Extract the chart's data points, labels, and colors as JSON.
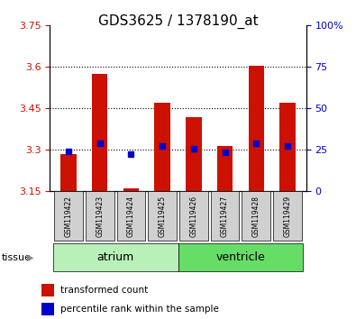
{
  "title": "GDS3625 / 1378190_at",
  "samples": [
    "GSM119422",
    "GSM119423",
    "GSM119424",
    "GSM119425",
    "GSM119426",
    "GSM119427",
    "GSM119428",
    "GSM119429"
  ],
  "bar_bottom": 3.15,
  "bar_tops": [
    3.285,
    3.575,
    3.16,
    3.47,
    3.42,
    3.315,
    3.605,
    3.47
  ],
  "percentile_values": [
    3.295,
    3.325,
    3.285,
    3.315,
    3.305,
    3.29,
    3.325,
    3.315
  ],
  "ylim_left": [
    3.15,
    3.75
  ],
  "ylim_right": [
    0,
    100
  ],
  "yticks_left": [
    3.15,
    3.3,
    3.45,
    3.6,
    3.75
  ],
  "ytick_labels_left": [
    "3.15",
    "3.3",
    "3.45",
    "3.6",
    "3.75"
  ],
  "yticks_right": [
    0,
    25,
    50,
    75,
    100
  ],
  "ytick_labels_right": [
    "0",
    "25",
    "50",
    "75",
    "100%"
  ],
  "gridlines": [
    3.3,
    3.45,
    3.6
  ],
  "tissue_groups": [
    {
      "label": "atrium",
      "color": "#b8f0b8",
      "start": 0,
      "end": 3
    },
    {
      "label": "ventricle",
      "color": "#66dd66",
      "start": 4,
      "end": 7
    }
  ],
  "bar_color": "#cc1100",
  "percentile_color": "#0000cc",
  "bar_width": 0.5,
  "tick_label_color_left": "#cc1100",
  "tick_label_color_right": "#0000cc",
  "legend_items": [
    {
      "color": "#cc1100",
      "label": "transformed count"
    },
    {
      "color": "#0000cc",
      "label": "percentile rank within the sample"
    }
  ],
  "tissue_label": "tissue",
  "background_xticklabels": "#d0d0d0"
}
